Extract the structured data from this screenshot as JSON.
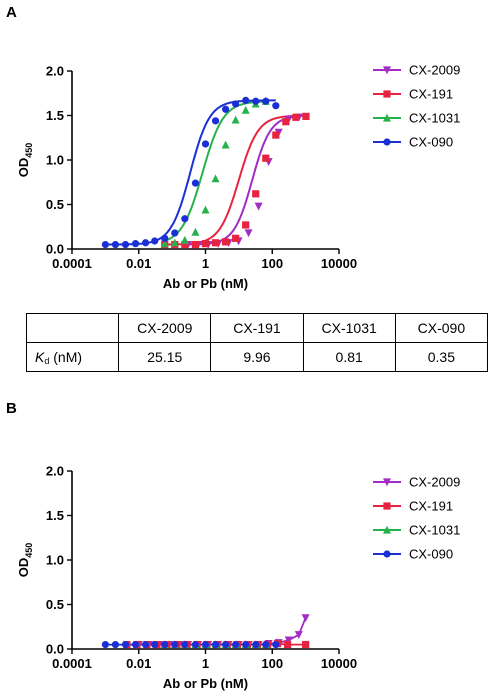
{
  "panels": {
    "a_label": "A",
    "b_label": "B"
  },
  "chart_data": [
    {
      "id": "A",
      "type": "scatter",
      "xlabel": "Ab or Pb (nM)",
      "ylabel_main": "OD",
      "ylabel_sub": "450",
      "xscale": "log",
      "xlim": [
        0.0001,
        10000
      ],
      "ylim": [
        0,
        2.0
      ],
      "x_ticks": [
        0.0001,
        0.01,
        1,
        100,
        10000
      ],
      "x_tick_labels": [
        "0.0001",
        "0.01",
        "1",
        "100",
        "10000"
      ],
      "y_ticks": [
        0,
        0.5,
        1.0,
        1.5,
        2.0
      ],
      "y_tick_labels": [
        "0.0",
        "0.5",
        "1.0",
        "1.5",
        "2.0"
      ],
      "legend_position": "right",
      "series": [
        {
          "name": "CX-2009",
          "color": "#a32cc4",
          "marker": "triangle-down",
          "x": [
            0.3,
            0.6,
            1.2,
            2.4,
            4.9,
            9.8,
            19.5,
            39,
            78,
            156,
            312,
            625
          ],
          "y": [
            0.05,
            0.05,
            0.05,
            0.06,
            0.07,
            0.09,
            0.18,
            0.48,
            0.98,
            1.31,
            1.46,
            1.48
          ],
          "fit": {
            "bottom": 0.05,
            "top": 1.5,
            "ec50": 25.15,
            "hill": 1.6,
            "xmin": 0.3,
            "xmax": 625
          }
        },
        {
          "name": "CX-191",
          "color": "#e8233f",
          "marker": "square",
          "x": [
            0.06,
            0.12,
            0.24,
            0.5,
            1.0,
            2.0,
            4.0,
            8.0,
            16,
            32,
            64,
            128,
            256,
            512,
            1024
          ],
          "y": [
            0.05,
            0.05,
            0.05,
            0.05,
            0.06,
            0.07,
            0.08,
            0.12,
            0.27,
            0.62,
            1.02,
            1.28,
            1.43,
            1.48,
            1.49
          ],
          "fit": {
            "bottom": 0.05,
            "top": 1.5,
            "ec50": 9.96,
            "hill": 1.5,
            "xmin": 0.06,
            "xmax": 1024
          }
        },
        {
          "name": "CX-1031",
          "color": "#25b24a",
          "marker": "triangle-up",
          "x": [
            0.06,
            0.12,
            0.24,
            0.5,
            1.0,
            2.0,
            4.0,
            8.0,
            16,
            32,
            64
          ],
          "y": [
            0.06,
            0.07,
            0.1,
            0.19,
            0.44,
            0.79,
            1.17,
            1.45,
            1.56,
            1.63,
            1.66
          ],
          "fit": {
            "bottom": 0.05,
            "top": 1.66,
            "ec50": 0.81,
            "hill": 1.4,
            "xmin": 0.06,
            "xmax": 64
          }
        },
        {
          "name": "CX-090",
          "color": "#1a2fd6",
          "marker": "circle",
          "x": [
            0.001,
            0.002,
            0.004,
            0.008,
            0.016,
            0.03,
            0.06,
            0.12,
            0.24,
            0.5,
            1.0,
            2.0,
            4.0,
            8.0,
            16,
            32,
            64,
            128
          ],
          "y": [
            0.05,
            0.05,
            0.05,
            0.06,
            0.07,
            0.09,
            0.12,
            0.18,
            0.34,
            0.74,
            1.18,
            1.44,
            1.57,
            1.63,
            1.67,
            1.66,
            1.66,
            1.61
          ],
          "fit": {
            "bottom": 0.05,
            "top": 1.67,
            "ec50": 0.35,
            "hill": 1.5,
            "xmin": 0.001,
            "xmax": 128
          }
        }
      ]
    },
    {
      "id": "B",
      "type": "scatter",
      "xlabel": "Ab or Pb (nM)",
      "ylabel_main": "OD",
      "ylabel_sub": "450",
      "xscale": "log",
      "xlim": [
        0.0001,
        10000
      ],
      "ylim": [
        0,
        2.0
      ],
      "x_ticks": [
        0.0001,
        0.01,
        1,
        100,
        10000
      ],
      "x_tick_labels": [
        "0.0001",
        "0.01",
        "1",
        "100",
        "10000"
      ],
      "y_ticks": [
        0,
        0.5,
        1.0,
        1.5,
        2.0
      ],
      "y_tick_labels": [
        "0.0",
        "0.5",
        "1.0",
        "1.5",
        "2.0"
      ],
      "legend_position": "right",
      "series": [
        {
          "name": "CX-2009",
          "color": "#a32cc4",
          "marker": "triangle-down",
          "x": [
            0.01,
            0.02,
            0.04,
            0.08,
            0.16,
            0.3,
            0.6,
            1.2,
            2.4,
            4.9,
            9.8,
            19.5,
            39,
            78,
            156,
            312,
            625,
            1000
          ],
          "y": [
            0.05,
            0.05,
            0.05,
            0.05,
            0.05,
            0.05,
            0.05,
            0.05,
            0.05,
            0.05,
            0.05,
            0.05,
            0.05,
            0.06,
            0.07,
            0.1,
            0.16,
            0.35
          ]
        },
        {
          "name": "CX-191",
          "color": "#e8233f",
          "marker": "square",
          "x": [
            0.0044,
            0.0088,
            0.0176,
            0.0352,
            0.07,
            0.14,
            0.28,
            0.56,
            1.1,
            2.2,
            4.5,
            9,
            18,
            36,
            72,
            144,
            288,
            1000
          ],
          "y": [
            0.05,
            0.05,
            0.05,
            0.05,
            0.05,
            0.05,
            0.05,
            0.05,
            0.05,
            0.05,
            0.05,
            0.05,
            0.05,
            0.05,
            0.05,
            0.06,
            0.05,
            0.05
          ]
        },
        {
          "name": "CX-1031",
          "color": "#25b24a",
          "marker": "triangle-up",
          "x": [
            0.06,
            0.12,
            0.24,
            0.5,
            1.0,
            2.0,
            4.0,
            8.0,
            16,
            32,
            64
          ],
          "y": [
            0.05,
            0.05,
            0.05,
            0.05,
            0.05,
            0.05,
            0.05,
            0.05,
            0.05,
            0.05,
            0.05
          ]
        },
        {
          "name": "CX-090",
          "color": "#1a2fd6",
          "marker": "circle",
          "x": [
            0.001,
            0.002,
            0.004,
            0.008,
            0.016,
            0.03,
            0.06,
            0.12,
            0.24,
            0.5,
            1.0,
            2.0,
            4.0,
            8.0,
            16,
            32,
            64,
            128
          ],
          "y": [
            0.05,
            0.05,
            0.05,
            0.05,
            0.05,
            0.05,
            0.05,
            0.05,
            0.05,
            0.05,
            0.05,
            0.05,
            0.05,
            0.05,
            0.05,
            0.05,
            0.05,
            0.05
          ]
        }
      ]
    }
  ],
  "kd_table": {
    "header": [
      "",
      "CX-2009",
      "CX-191",
      "CX-1031",
      "CX-090"
    ],
    "row_label_main": "K",
    "row_label_sub": "d",
    "row_label_unit": " (nM)",
    "values": [
      "25.15",
      "9.96",
      "0.81",
      "0.35"
    ]
  }
}
